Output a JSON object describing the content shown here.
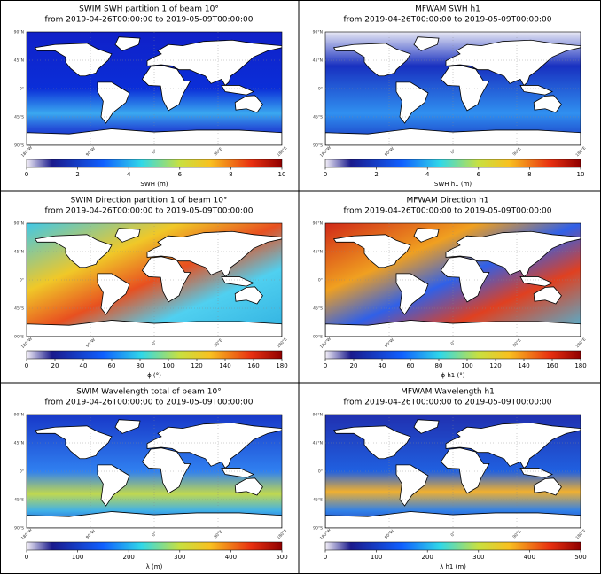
{
  "panels": [
    {
      "title": "SWIM SWH partition 1 of beam 10°",
      "subtitle": "from 2019-04-26T00:00:00 to 2019-05-09T00:00:00",
      "lat_labels": [
        "90°N",
        "45°N",
        "0°",
        "45°S",
        "90°S"
      ],
      "lon_labels": [
        "180°W",
        "90°W",
        "0°",
        "90°E",
        "180°E"
      ],
      "colorbar": {
        "label": "SWH (m)",
        "lim": [
          0,
          10
        ],
        "ticks": [
          0,
          2,
          4,
          6,
          8,
          10
        ]
      }
    },
    {
      "title": "MFWAM SWH h1",
      "subtitle": "from 2019-04-26T00:00:00 to 2019-05-09T00:00:00",
      "lat_labels": [
        "90°N",
        "45°N",
        "0°",
        "45°S",
        "90°S"
      ],
      "lon_labels": [
        "180°W",
        "90°W",
        "0°",
        "90°E",
        "180°E"
      ],
      "colorbar": {
        "label": "SWH h1 (m)",
        "lim": [
          0,
          10
        ],
        "ticks": [
          0,
          2,
          4,
          6,
          8,
          10
        ]
      }
    },
    {
      "title": "SWIM Direction partition 1 of beam 10°",
      "subtitle": "from 2019-04-26T00:00:00 to 2019-05-09T00:00:00",
      "lat_labels": [
        "90°N",
        "45°N",
        "0°",
        "45°S",
        "90°S"
      ],
      "lon_labels": [
        "180°W",
        "90°W",
        "0°",
        "90°E",
        "180°E"
      ],
      "colorbar": {
        "label": "ϕ (°)",
        "lim": [
          0,
          180
        ],
        "ticks": [
          0,
          20,
          40,
          60,
          80,
          100,
          120,
          140,
          160,
          180
        ]
      }
    },
    {
      "title": "MFWAM Direction h1",
      "subtitle": "from 2019-04-26T00:00:00 to 2019-05-09T00:00:00",
      "lat_labels": [
        "90°N",
        "45°N",
        "0°",
        "45°S",
        "90°S"
      ],
      "lon_labels": [
        "180°W",
        "90°W",
        "0°",
        "90°E",
        "180°E"
      ],
      "colorbar": {
        "label": "ϕ h1 (°)",
        "lim": [
          0,
          180
        ],
        "ticks": [
          0,
          20,
          40,
          60,
          80,
          100,
          120,
          140,
          160,
          180
        ]
      }
    },
    {
      "title": "SWIM Wavelength total of beam 10°",
      "subtitle": "from 2019-04-26T00:00:00 to 2019-05-09T00:00:00",
      "lat_labels": [
        "90°N",
        "45°N",
        "0°",
        "45°S",
        "90°S"
      ],
      "lon_labels": [
        "180°W",
        "90°W",
        "0°",
        "90°E",
        "180°E"
      ],
      "colorbar": {
        "label": "λ (m)",
        "lim": [
          0,
          500
        ],
        "ticks": [
          0,
          100,
          200,
          300,
          400,
          500
        ]
      }
    },
    {
      "title": "MFWAM Wavelength h1",
      "subtitle": "from 2019-04-26T00:00:00 to 2019-05-09T00:00:00",
      "lat_labels": [
        "90°N",
        "45°N",
        "0°",
        "45°S",
        "90°S"
      ],
      "lon_labels": [
        "180°W",
        "90°W",
        "0°",
        "90°E",
        "180°E"
      ],
      "colorbar": {
        "label": "λ h1 (m)",
        "lim": [
          0,
          500
        ],
        "ticks": [
          0,
          100,
          200,
          300,
          400,
          500
        ]
      }
    }
  ]
}
